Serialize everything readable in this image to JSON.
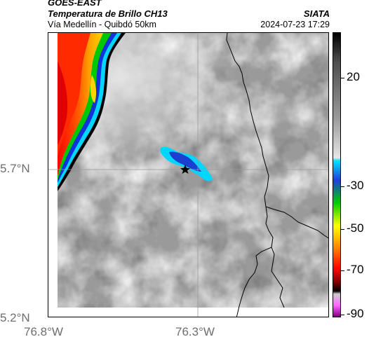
{
  "header": {
    "satellite": "GOES-EAST",
    "product": "Temperatura de Brillo CH13",
    "route": "Vía Medellín - Quibdó 50km",
    "organization": "SIATA",
    "timestamp": "2024-07-23 17:29"
  },
  "axes": {
    "lat_labels": [
      "5.7°N",
      "5.2°N"
    ],
    "lon_labels": [
      "76.8°W",
      "76.3°W"
    ]
  },
  "colorbar": {
    "labels": [
      "20",
      "-30",
      "-50",
      "-70",
      "-90"
    ],
    "stops": [
      "#000000",
      "#4d4d4d",
      "#9a9a9a",
      "#e6e6e6",
      "#00e5ff",
      "#1f3fd6",
      "#00d000",
      "#ffff00",
      "#ff8000",
      "#ff0000",
      "#7a0000",
      "#000000",
      "#cccccc",
      "#ff66ff",
      "#800080"
    ]
  },
  "map": {
    "marker": "star",
    "colors": {
      "border": "#000000",
      "grid": "#9a9a9a",
      "background": "#9a9a9a"
    }
  }
}
